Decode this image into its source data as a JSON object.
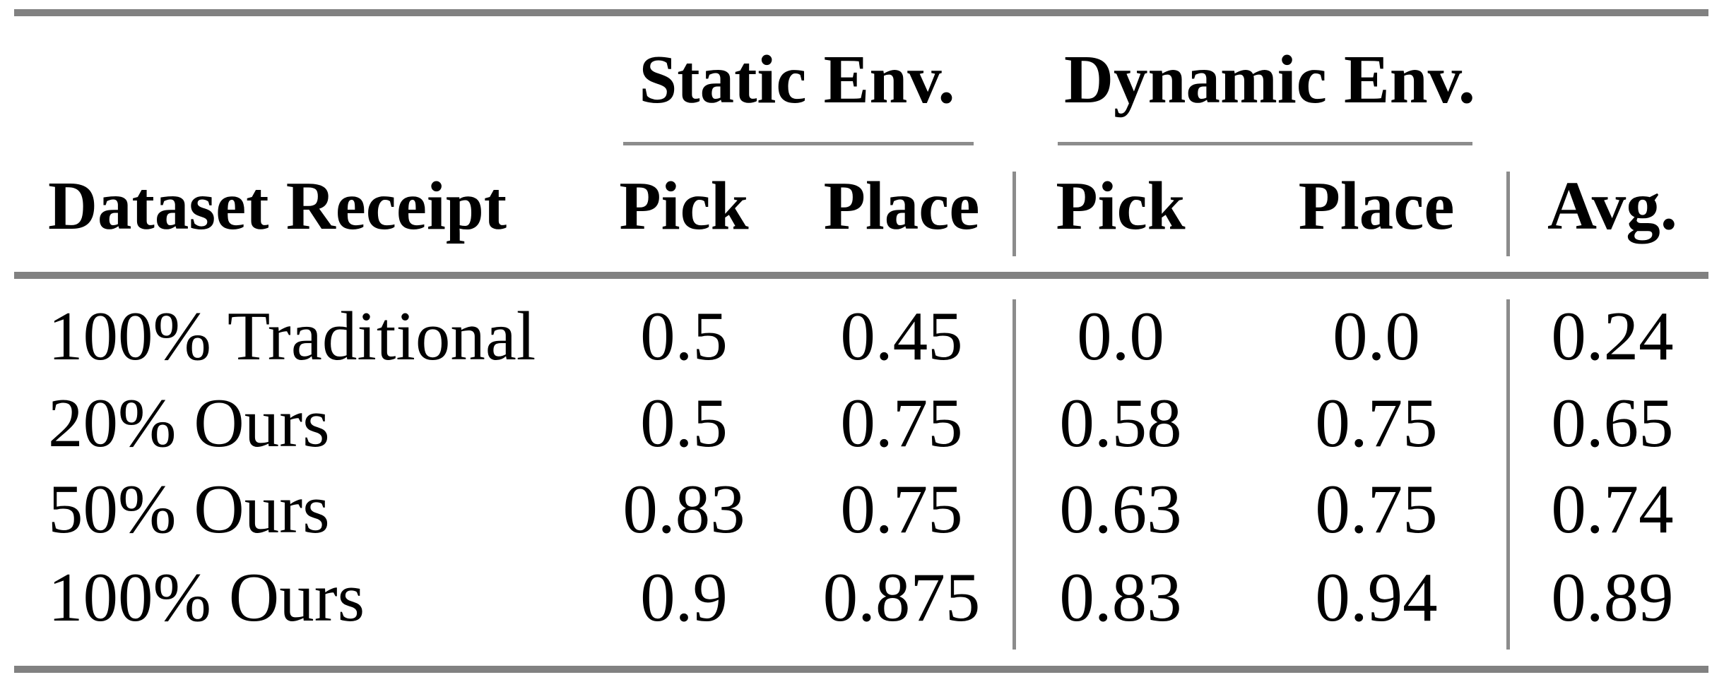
{
  "table": {
    "group_headers": {
      "static": "Static Env.",
      "dynamic": "Dynamic Env."
    },
    "column_headers": {
      "row_label": "Dataset Receipt",
      "static_pick": "Pick",
      "static_place": "Place",
      "dynamic_pick": "Pick",
      "dynamic_place": "Place",
      "avg": "Avg."
    },
    "rows": [
      {
        "label": "100% Traditional",
        "static_pick": "0.5",
        "static_place": "0.45",
        "dynamic_pick": "0.0",
        "dynamic_place": "0.0",
        "avg": "0.24"
      },
      {
        "label": "20% Ours",
        "static_pick": "0.5",
        "static_place": "0.75",
        "dynamic_pick": "0.58",
        "dynamic_place": "0.75",
        "avg": "0.65"
      },
      {
        "label": "50% Ours",
        "static_pick": "0.83",
        "static_place": "0.75",
        "dynamic_pick": "0.63",
        "dynamic_place": "0.75",
        "avg": "0.74"
      },
      {
        "label": "100% Ours",
        "static_pick": "0.9",
        "static_place": "0.875",
        "dynamic_pick": "0.83",
        "dynamic_place": "0.94",
        "avg": "0.89"
      }
    ]
  },
  "chart_data": {
    "type": "table",
    "title": "",
    "column_groups": [
      "",
      "Static Env.",
      "Static Env.",
      "Dynamic Env.",
      "Dynamic Env.",
      ""
    ],
    "columns": [
      "Dataset Receipt",
      "Pick",
      "Place",
      "Pick",
      "Place",
      "Avg."
    ],
    "rows": [
      [
        "100% Traditional",
        0.5,
        0.45,
        0.0,
        0.0,
        0.24
      ],
      [
        "20% Ours",
        0.5,
        0.75,
        0.58,
        0.75,
        0.65
      ],
      [
        "50% Ours",
        0.83,
        0.75,
        0.63,
        0.75,
        0.74
      ],
      [
        "100% Ours",
        0.9,
        0.875,
        0.83,
        0.94,
        0.89
      ]
    ]
  },
  "colors": {
    "rule_thick": "#818181",
    "rule_thin": "#8c8c8c",
    "text": "#000000",
    "background": "#ffffff"
  }
}
